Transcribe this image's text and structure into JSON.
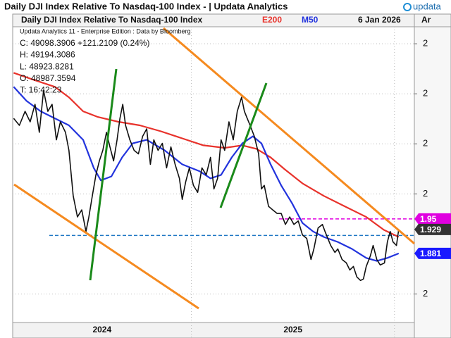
{
  "chart_data": {
    "type": "line",
    "title": "Daily DJI Index Relative To Nasdaq-100 Index - | Updata Analytics",
    "brand": "updata",
    "date": "6 Jan 2026",
    "axis_header": "Ar",
    "info_lines": [
      "Updata Analytics 11 - Enterprise Edition : Data by Bloomberg",
      "C: 49098.3906  +121.2109 (0.24%)",
      "H: 49194.3086",
      "L: 48923.8281",
      "O: 48987.3594",
      "T: 16:42:23"
    ],
    "xlim": [
      2024.12,
      2026.098
    ],
    "xticks": [
      2025,
      2026
    ],
    "year_labels": [
      "2024",
      "2025"
    ],
    "ylim": [
      1.743,
      2.334
    ],
    "yticks": [
      {
        "value": 2.3,
        "label": "2"
      },
      {
        "value": 2.2,
        "label": "2"
      },
      {
        "value": 2.1,
        "label": "2"
      },
      {
        "value": 2.0,
        "label": "2"
      },
      {
        "value": 1.8,
        "label": "2"
      }
    ],
    "grid": true,
    "series": [
      {
        "name": "Daily DJI Index Relative To Nasdaq-100 Index",
        "color": "#111111",
        "x": [
          2024.125,
          2024.153,
          2024.181,
          2024.206,
          2024.23,
          2024.251,
          2024.272,
          2024.293,
          2024.314,
          2024.335,
          2024.355,
          2024.38,
          2024.397,
          2024.418,
          2024.439,
          2024.46,
          2024.481,
          2024.495,
          2024.512,
          2024.53,
          2024.547,
          2024.564,
          2024.582,
          2024.599,
          2024.617,
          2024.634,
          2024.648,
          2024.662,
          2024.676,
          2024.697,
          2024.718,
          2024.739,
          2024.76,
          2024.78,
          2024.798,
          2024.815,
          2024.836,
          2024.857,
          2024.878,
          2024.899,
          2024.92,
          2024.941,
          2024.955,
          2024.972,
          2024.99,
          2025.01,
          2025.031,
          2025.052,
          2025.073,
          2025.094,
          2025.111,
          2025.129,
          2025.146,
          2025.164,
          2025.185,
          2025.206,
          2025.226,
          2025.247,
          2025.261,
          2025.275,
          2025.289,
          2025.31,
          2025.331,
          2025.345,
          2025.359,
          2025.38,
          2025.401,
          2025.422,
          2025.442,
          2025.463,
          2025.484,
          2025.505,
          2025.526,
          2025.547,
          2025.568,
          2025.589,
          2025.603,
          2025.624,
          2025.645,
          2025.658,
          2025.672,
          2025.686,
          2025.707,
          2025.721,
          2025.742,
          2025.763,
          2025.78,
          2025.798,
          2025.815,
          2025.833,
          2025.847,
          2025.861,
          2025.881,
          2025.895,
          2025.913,
          2025.93,
          2025.951,
          2025.965,
          2025.979,
          2025.993,
          2026.01,
          2026.021
        ],
        "values": [
          2.151,
          2.137,
          2.165,
          2.144,
          2.179,
          2.123,
          2.207,
          2.165,
          2.179,
          2.108,
          2.144,
          2.123,
          2.087,
          1.996,
          1.954,
          1.968,
          1.925,
          1.954,
          1.996,
          2.038,
          2.066,
          2.087,
          2.123,
          2.094,
          2.066,
          2.108,
          2.151,
          2.179,
          2.137,
          2.108,
          2.087,
          2.08,
          2.115,
          2.13,
          2.059,
          2.108,
          2.087,
          2.101,
          2.052,
          2.094,
          2.059,
          2.031,
          1.989,
          2.024,
          2.052,
          2.017,
          2.003,
          2.052,
          2.038,
          2.073,
          2.01,
          2.031,
          2.108,
          2.087,
          2.144,
          2.108,
          2.165,
          2.193,
          2.165,
          2.151,
          2.137,
          2.115,
          2.08,
          2.01,
          2.017,
          1.975,
          1.968,
          1.961,
          1.961,
          1.939,
          1.954,
          1.939,
          1.946,
          1.918,
          1.911,
          1.869,
          1.89,
          1.932,
          1.939,
          1.925,
          1.911,
          1.897,
          1.883,
          1.89,
          1.869,
          1.862,
          1.848,
          1.855,
          1.834,
          1.827,
          1.83,
          1.855,
          1.876,
          1.897,
          1.869,
          1.858,
          1.862,
          1.904,
          1.925,
          1.904,
          1.897,
          1.929
        ]
      },
      {
        "name": "E200",
        "color": "#e8322b",
        "x": [
          2024.125,
          2024.223,
          2024.328,
          2024.397,
          2024.467,
          2024.537,
          2024.641,
          2024.746,
          2024.85,
          2024.955,
          2025.059,
          2025.164,
          2025.251,
          2025.321,
          2025.39,
          2025.46,
          2025.547,
          2025.652,
          2025.756,
          2025.861,
          2025.948,
          2026.021
        ],
        "values": [
          2.242,
          2.228,
          2.214,
          2.193,
          2.165,
          2.154,
          2.144,
          2.137,
          2.125,
          2.111,
          2.097,
          2.092,
          2.097,
          2.09,
          2.073,
          2.049,
          2.021,
          1.996,
          1.975,
          1.954,
          1.928,
          1.914
        ]
      },
      {
        "name": "M50",
        "color": "#2233dd",
        "x": [
          2024.125,
          2024.188,
          2024.258,
          2024.328,
          2024.397,
          2024.467,
          2024.519,
          2024.554,
          2024.606,
          2024.659,
          2024.711,
          2024.78,
          2024.868,
          2024.955,
          2025.042,
          2025.094,
          2025.146,
          2025.199,
          2025.251,
          2025.303,
          2025.345,
          2025.39,
          2025.442,
          2025.495,
          2025.547,
          2025.599,
          2025.652,
          2025.721,
          2025.791,
          2025.861,
          2025.913,
          2025.965,
          2026.021
        ],
        "values": [
          2.214,
          2.186,
          2.165,
          2.151,
          2.137,
          2.108,
          2.052,
          2.027,
          2.035,
          2.073,
          2.101,
          2.108,
          2.087,
          2.059,
          2.045,
          2.031,
          2.038,
          2.073,
          2.101,
          2.115,
          2.101,
          2.059,
          2.017,
          1.982,
          1.942,
          1.925,
          1.914,
          1.904,
          1.89,
          1.872,
          1.866,
          1.872,
          1.881
        ]
      }
    ],
    "hlines": [
      {
        "value": 1.95,
        "color": "#e000e0"
      },
      {
        "value": 1.917,
        "color": "#1f77c4"
      }
    ],
    "price_tags": [
      {
        "value": 1.95,
        "color": "#e000e0"
      },
      {
        "value": 1.929,
        "color": "#333333"
      },
      {
        "value": 1.881,
        "color": "#1a1aff"
      }
    ]
  }
}
